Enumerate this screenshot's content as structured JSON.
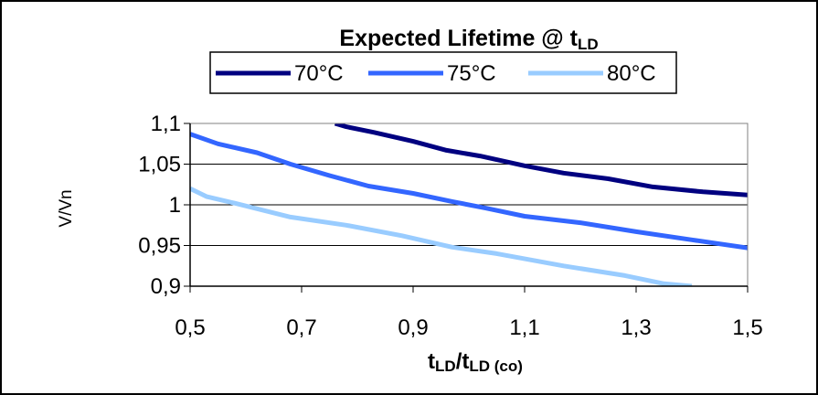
{
  "chart_data": {
    "type": "line",
    "title": {
      "main": "Expected Lifetime @ t",
      "sub": "LD"
    },
    "xlabel": {
      "t1": "t",
      "s1": "LD",
      "slash": "/",
      "t2": "t",
      "s2": "LD (co)"
    },
    "ylabel": "V/Vn",
    "xlim": [
      0.5,
      1.5
    ],
    "ylim": [
      0.9,
      1.1
    ],
    "x_ticks": [
      "0,5",
      "0,7",
      "0,9",
      "1,1",
      "1,3",
      "1,5"
    ],
    "y_ticks": [
      "1,1",
      "1,05",
      "1",
      "0,95",
      "0,9"
    ],
    "grid": "horizontal",
    "legend_position": "top",
    "series": [
      {
        "name": "70°C",
        "color": "#000080",
        "x": [
          0.76,
          0.78,
          0.83,
          0.9,
          0.96,
          1.02,
          1.1,
          1.17,
          1.25,
          1.33,
          1.42,
          1.5
        ],
        "y": [
          1.1,
          1.096,
          1.089,
          1.078,
          1.067,
          1.06,
          1.048,
          1.039,
          1.032,
          1.022,
          1.016,
          1.012
        ]
      },
      {
        "name": "75°C",
        "color": "#3366ff",
        "x": [
          0.5,
          0.55,
          0.62,
          0.68,
          0.75,
          0.82,
          0.9,
          0.97,
          1.03,
          1.1,
          1.2,
          1.3,
          1.4,
          1.5
        ],
        "y": [
          1.087,
          1.075,
          1.064,
          1.05,
          1.036,
          1.023,
          1.014,
          1.004,
          0.996,
          0.986,
          0.978,
          0.967,
          0.957,
          0.947
        ]
      },
      {
        "name": "80°C",
        "color": "#99ccff",
        "x": [
          0.5,
          0.53,
          0.58,
          0.68,
          0.78,
          0.88,
          0.97,
          1.05,
          1.17,
          1.28,
          1.35,
          1.4
        ],
        "y": [
          1.02,
          1.01,
          1.002,
          0.985,
          0.975,
          0.962,
          0.948,
          0.94,
          0.925,
          0.913,
          0.903,
          0.9
        ]
      }
    ]
  }
}
